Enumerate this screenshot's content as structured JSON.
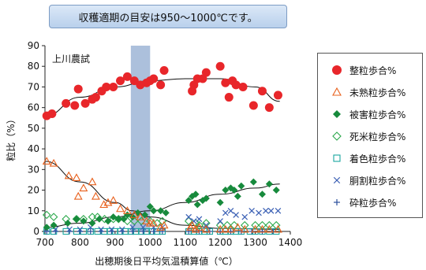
{
  "chart_data": {
    "type": "scatter",
    "annotation": "収穫適期の目安は950～1000℃です。",
    "inner_label": "上川農試",
    "xlabel": "出穂期後日平均気温積算値（℃）",
    "ylabel": "粒比（%）",
    "xlim": [
      700,
      1400
    ],
    "ylim": [
      0,
      90
    ],
    "xticks": [
      "700",
      "800",
      "900",
      "1000",
      "1100",
      "1200",
      "1300",
      "1400"
    ],
    "yticks": [
      "0",
      "10",
      "20",
      "30",
      "40",
      "50",
      "60",
      "70",
      "80",
      "90"
    ],
    "highlight_band": [
      945,
      1000
    ],
    "grid": false,
    "legend_position": "right",
    "series": [
      {
        "name": "整粒歩合%",
        "marker": "circle-filled",
        "color": "#e8262a",
        "points": [
          [
            705,
            56
          ],
          [
            720,
            57
          ],
          [
            760,
            62
          ],
          [
            785,
            61
          ],
          [
            795,
            69
          ],
          [
            815,
            62
          ],
          [
            835,
            64
          ],
          [
            845,
            65
          ],
          [
            862,
            68
          ],
          [
            875,
            70
          ],
          [
            895,
            70
          ],
          [
            915,
            73
          ],
          [
            935,
            75
          ],
          [
            955,
            73
          ],
          [
            972,
            71
          ],
          [
            990,
            72
          ],
          [
            1000,
            73
          ],
          [
            1010,
            74
          ],
          [
            1030,
            71
          ],
          [
            1040,
            78
          ],
          [
            1120,
            68
          ],
          [
            1125,
            71
          ],
          [
            1135,
            74
          ],
          [
            1150,
            74
          ],
          [
            1160,
            77
          ],
          [
            1200,
            80
          ],
          [
            1215,
            72
          ],
          [
            1225,
            65
          ],
          [
            1235,
            73
          ],
          [
            1245,
            71
          ],
          [
            1265,
            70
          ],
          [
            1295,
            61
          ],
          [
            1320,
            68
          ],
          [
            1340,
            60
          ],
          [
            1365,
            66
          ]
        ],
        "trend": [
          [
            700,
            56
          ],
          [
            800,
            65
          ],
          [
            900,
            70
          ],
          [
            1000,
            73
          ],
          [
            1100,
            74
          ],
          [
            1200,
            74
          ],
          [
            1300,
            70
          ],
          [
            1370,
            63
          ]
        ]
      },
      {
        "name": "未熟粒歩合%",
        "marker": "triangle-open",
        "color": "#e8601c",
        "points": [
          [
            705,
            34
          ],
          [
            725,
            33
          ],
          [
            768,
            27
          ],
          [
            790,
            26
          ],
          [
            795,
            17
          ],
          [
            810,
            21
          ],
          [
            835,
            24
          ],
          [
            845,
            17
          ],
          [
            868,
            13
          ],
          [
            880,
            14
          ],
          [
            895,
            15
          ],
          [
            915,
            11
          ],
          [
            935,
            10
          ],
          [
            955,
            8
          ],
          [
            972,
            7
          ],
          [
            990,
            5
          ],
          [
            1000,
            4
          ],
          [
            1010,
            4
          ],
          [
            1030,
            2
          ],
          [
            1040,
            3
          ],
          [
            1115,
            2
          ],
          [
            1120,
            3
          ],
          [
            1130,
            1
          ],
          [
            1140,
            2
          ],
          [
            1160,
            1
          ],
          [
            1200,
            1
          ],
          [
            1215,
            1
          ],
          [
            1230,
            1
          ],
          [
            1250,
            2
          ],
          [
            1270,
            1
          ],
          [
            1300,
            1
          ],
          [
            1320,
            1
          ],
          [
            1340,
            1
          ],
          [
            1365,
            1
          ]
        ],
        "trend": [
          [
            700,
            34
          ],
          [
            800,
            24
          ],
          [
            900,
            14
          ],
          [
            950,
            10
          ],
          [
            1000,
            7
          ],
          [
            1100,
            3
          ],
          [
            1200,
            1.5
          ],
          [
            1370,
            1
          ]
        ]
      },
      {
        "name": "被害粒歩合%",
        "marker": "diamond-filled",
        "color": "#178a3c",
        "points": [
          [
            705,
            2
          ],
          [
            725,
            3
          ],
          [
            765,
            4
          ],
          [
            790,
            6
          ],
          [
            810,
            5
          ],
          [
            835,
            4
          ],
          [
            855,
            6
          ],
          [
            880,
            5
          ],
          [
            895,
            7
          ],
          [
            910,
            6
          ],
          [
            925,
            6
          ],
          [
            935,
            8
          ],
          [
            950,
            7
          ],
          [
            965,
            9
          ],
          [
            985,
            8
          ],
          [
            1000,
            12
          ],
          [
            1010,
            10
          ],
          [
            1030,
            10
          ],
          [
            1045,
            9
          ],
          [
            1110,
            15
          ],
          [
            1120,
            17
          ],
          [
            1130,
            18
          ],
          [
            1135,
            13
          ],
          [
            1150,
            15
          ],
          [
            1160,
            16
          ],
          [
            1200,
            14
          ],
          [
            1215,
            20
          ],
          [
            1230,
            21
          ],
          [
            1240,
            20
          ],
          [
            1250,
            17
          ],
          [
            1260,
            22
          ],
          [
            1295,
            24
          ],
          [
            1320,
            18
          ],
          [
            1340,
            23
          ],
          [
            1360,
            20
          ]
        ],
        "trend": [
          [
            700,
            2
          ],
          [
            800,
            4
          ],
          [
            900,
            7
          ],
          [
            1000,
            10
          ],
          [
            1100,
            14
          ],
          [
            1200,
            18
          ],
          [
            1300,
            21
          ],
          [
            1370,
            23
          ]
        ]
      },
      {
        "name": "死米粒歩合%",
        "marker": "diamond-open",
        "color": "#2aa84a",
        "points": [
          [
            705,
            8
          ],
          [
            725,
            7
          ],
          [
            760,
            6
          ],
          [
            790,
            6
          ],
          [
            810,
            6
          ],
          [
            835,
            7
          ],
          [
            850,
            7
          ],
          [
            870,
            6
          ],
          [
            895,
            6
          ],
          [
            910,
            6
          ],
          [
            935,
            5
          ],
          [
            955,
            5
          ],
          [
            975,
            5
          ],
          [
            1000,
            5
          ],
          [
            1020,
            4
          ],
          [
            1035,
            5
          ],
          [
            1110,
            5
          ],
          [
            1130,
            4
          ],
          [
            1140,
            3
          ],
          [
            1160,
            4
          ],
          [
            1200,
            3
          ],
          [
            1220,
            3
          ],
          [
            1240,
            3
          ],
          [
            1270,
            3
          ],
          [
            1300,
            3
          ],
          [
            1320,
            3
          ],
          [
            1340,
            3
          ],
          [
            1360,
            3
          ]
        ]
      },
      {
        "name": "着色粒歩合%",
        "marker": "square-open",
        "color": "#1aa7a0",
        "points": [
          [
            705,
            0
          ],
          [
            725,
            0
          ],
          [
            760,
            0
          ],
          [
            790,
            0
          ],
          [
            810,
            0
          ],
          [
            830,
            0
          ],
          [
            850,
            0
          ],
          [
            870,
            0
          ],
          [
            885,
            0
          ],
          [
            900,
            0
          ],
          [
            915,
            0
          ],
          [
            930,
            0
          ],
          [
            945,
            0
          ],
          [
            960,
            0
          ],
          [
            975,
            0
          ],
          [
            990,
            0
          ],
          [
            1005,
            0
          ],
          [
            1020,
            0
          ],
          [
            1035,
            0
          ],
          [
            1110,
            0
          ],
          [
            1125,
            0
          ],
          [
            1140,
            0
          ],
          [
            1155,
            0
          ],
          [
            1170,
            0
          ],
          [
            1200,
            0
          ],
          [
            1215,
            0
          ],
          [
            1230,
            0
          ],
          [
            1245,
            0
          ],
          [
            1260,
            0
          ],
          [
            1285,
            0
          ],
          [
            1300,
            0
          ],
          [
            1320,
            0
          ],
          [
            1340,
            0
          ],
          [
            1360,
            0
          ]
        ]
      },
      {
        "name": "胴割粒歩合%",
        "marker": "x",
        "color": "#3a5fb4",
        "points": [
          [
            705,
            1
          ],
          [
            730,
            1
          ],
          [
            770,
            1
          ],
          [
            800,
            1
          ],
          [
            830,
            2
          ],
          [
            860,
            1
          ],
          [
            890,
            1
          ],
          [
            920,
            1
          ],
          [
            950,
            2
          ],
          [
            980,
            2
          ],
          [
            1010,
            2
          ],
          [
            1035,
            2
          ],
          [
            1110,
            7
          ],
          [
            1125,
            5
          ],
          [
            1140,
            6
          ],
          [
            1160,
            3
          ],
          [
            1200,
            5
          ],
          [
            1215,
            9
          ],
          [
            1230,
            10
          ],
          [
            1245,
            8
          ],
          [
            1270,
            7
          ],
          [
            1290,
            10
          ],
          [
            1310,
            9
          ],
          [
            1330,
            10
          ],
          [
            1345,
            10
          ],
          [
            1365,
            10
          ]
        ]
      },
      {
        "name": "砕粒歩合%",
        "marker": "plus",
        "color": "#2c4f9c",
        "points": [
          [
            705,
            0
          ],
          [
            730,
            0
          ],
          [
            770,
            0
          ],
          [
            800,
            0
          ],
          [
            830,
            0
          ],
          [
            860,
            0
          ],
          [
            890,
            0
          ],
          [
            920,
            0
          ],
          [
            950,
            0
          ],
          [
            980,
            0
          ],
          [
            1010,
            0
          ],
          [
            1035,
            0
          ],
          [
            1110,
            0
          ],
          [
            1140,
            0
          ],
          [
            1170,
            0
          ],
          [
            1200,
            0
          ],
          [
            1230,
            0
          ],
          [
            1260,
            0
          ],
          [
            1290,
            0
          ],
          [
            1320,
            0
          ],
          [
            1350,
            0
          ]
        ]
      }
    ]
  }
}
